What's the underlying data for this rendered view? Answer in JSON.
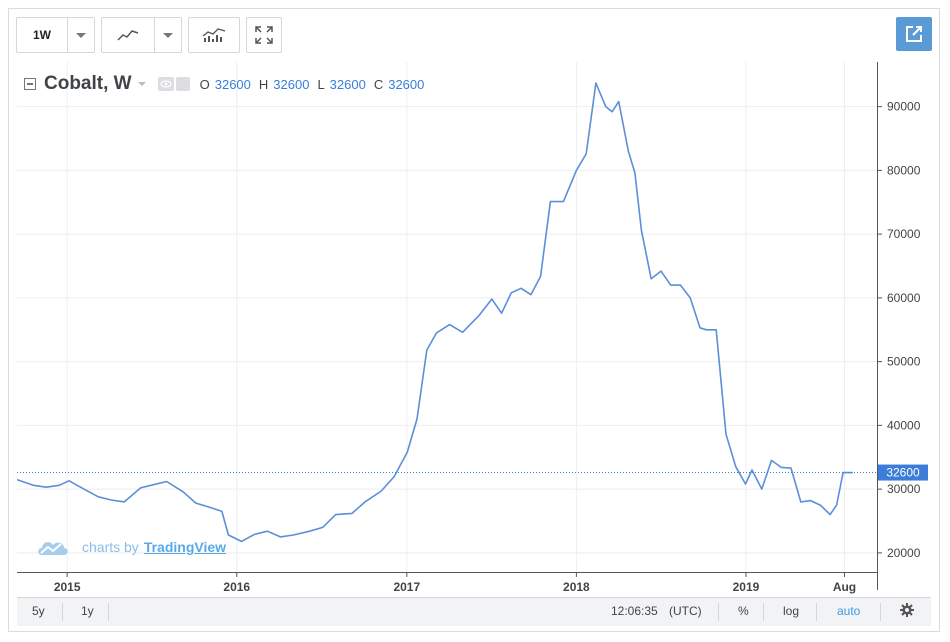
{
  "toolbar": {
    "interval_label": "1W",
    "buttons": [
      "line-style-icon",
      "indicators-icon",
      "fullscreen-icon"
    ]
  },
  "legend": {
    "symbol": "Cobalt, W",
    "o_label": "O",
    "o_value": "32600",
    "h_label": "H",
    "h_value": "32600",
    "l_label": "L",
    "l_value": "32600",
    "c_label": "C",
    "c_value": "32600"
  },
  "watermark": {
    "prefix": "charts by",
    "brand": "TradingView"
  },
  "bottom": {
    "range_5y": "5y",
    "range_1y": "1y",
    "time": "12:06:35",
    "tz": "(UTC)",
    "percent": "%",
    "log": "log",
    "auto": "auto"
  },
  "colors": {
    "line": "#5b8fd9",
    "accent": "#3b7dd8",
    "price_label_bg": "#3b7dd8",
    "popout_bg": "#5b9bd5"
  },
  "chart_data": {
    "type": "line",
    "title": "Cobalt, W",
    "xlabel": "",
    "ylabel": "",
    "x_ticks": [
      "2015",
      "2016",
      "2017",
      "2018",
      "2019",
      "Aug"
    ],
    "y_ticks": [
      20000,
      30000,
      40000,
      50000,
      60000,
      70000,
      80000,
      90000
    ],
    "ylim": [
      17000,
      97000
    ],
    "xlim": [
      "2014-09-15",
      "2019-10-10"
    ],
    "last_price": 32600,
    "last_price_label": "32600",
    "grid": true,
    "series": [
      {
        "x": [
          "2014-09-15",
          "2014-10-20",
          "2014-11-17",
          "2014-12-15",
          "2015-01-05",
          "2015-02-09",
          "2015-03-09",
          "2015-04-06",
          "2015-05-04",
          "2015-06-08",
          "2015-07-06",
          "2015-08-03",
          "2015-09-07",
          "2015-10-05",
          "2015-11-02",
          "2015-11-30",
          "2015-12-14",
          "2016-01-11",
          "2016-02-08",
          "2016-03-07",
          "2016-04-04",
          "2016-05-02",
          "2016-06-06",
          "2016-07-04",
          "2016-08-01",
          "2016-09-05",
          "2016-10-03",
          "2016-11-07",
          "2016-12-05",
          "2017-01-02",
          "2017-01-23",
          "2017-02-13",
          "2017-03-06",
          "2017-04-03",
          "2017-05-01",
          "2017-06-05",
          "2017-07-03",
          "2017-07-24",
          "2017-08-14",
          "2017-09-04",
          "2017-09-25",
          "2017-10-16",
          "2017-11-06",
          "2017-12-04",
          "2018-01-01",
          "2018-01-22",
          "2018-02-12",
          "2018-03-05",
          "2018-03-19",
          "2018-04-02",
          "2018-04-23",
          "2018-05-07",
          "2018-05-21",
          "2018-06-11",
          "2018-07-02",
          "2018-07-23",
          "2018-08-13",
          "2018-09-03",
          "2018-09-24",
          "2018-10-08",
          "2018-10-29",
          "2018-11-19",
          "2018-12-10",
          "2018-12-31",
          "2019-01-14",
          "2019-02-04",
          "2019-02-25",
          "2019-03-18",
          "2019-04-08",
          "2019-04-29",
          "2019-05-20",
          "2019-06-10",
          "2019-07-01",
          "2019-07-15",
          "2019-07-29",
          "2019-08-12",
          "2019-08-19"
        ],
        "values": [
          31500,
          30600,
          30300,
          30600,
          31300,
          29900,
          28800,
          28300,
          28000,
          30200,
          30700,
          31200,
          29600,
          27800,
          27200,
          26500,
          22800,
          21800,
          22900,
          23400,
          22500,
          22800,
          23400,
          24000,
          26000,
          26200,
          28000,
          29700,
          32000,
          35800,
          41000,
          51800,
          54500,
          55800,
          54600,
          57200,
          59800,
          57600,
          60800,
          61500,
          60500,
          63400,
          75100,
          75100,
          80000,
          82600,
          93700,
          90000,
          89200,
          90800,
          83000,
          79600,
          70600,
          63000,
          64200,
          62000,
          62000,
          60000,
          55300,
          55000,
          55000,
          38600,
          33500,
          30800,
          33000,
          30000,
          34500,
          33400,
          33300,
          28000,
          28200,
          27500,
          26000,
          27500,
          32600,
          32600,
          32600
        ]
      }
    ]
  }
}
